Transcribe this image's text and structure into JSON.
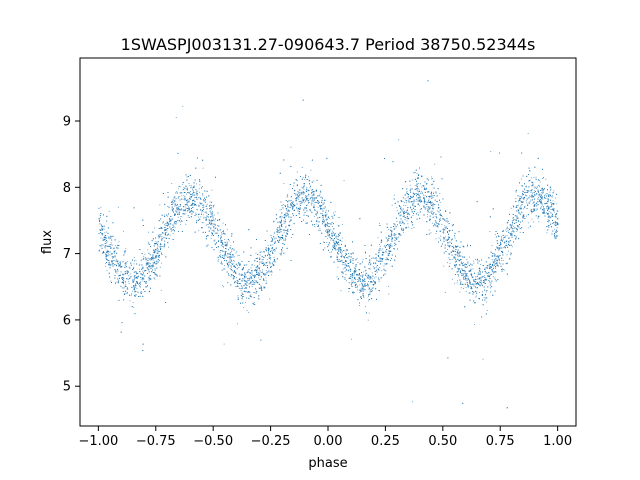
{
  "chart_data": {
    "type": "scatter",
    "title": "1SWASPJ003131.27-090643.7 Period 38750.52344s",
    "xlabel": "phase",
    "ylabel": "flux",
    "xlim": [
      -1.08,
      1.08
    ],
    "ylim": [
      4.4,
      9.95
    ],
    "x_ticks": [
      -1.0,
      -0.75,
      -0.5,
      -0.25,
      0.0,
      0.25,
      0.5,
      0.75,
      1.0
    ],
    "x_tick_labels": [
      "−1.00",
      "−0.75",
      "−0.50",
      "−0.25",
      "0.00",
      "0.25",
      "0.50",
      "0.75",
      "1.00"
    ],
    "y_ticks": [
      5,
      6,
      7,
      8,
      9
    ],
    "y_tick_labels": [
      "5",
      "6",
      "7",
      "8",
      "9"
    ],
    "grid": false,
    "point_color": "#1f77b4",
    "series": [
      {
        "phase_range": [
          -1.0,
          1.0
        ],
        "model": "double-period sinusoid, two maxima and two minima per unit phase",
        "maxima": [
          {
            "phase": -0.6,
            "flux": 7.9
          },
          {
            "phase": -0.1,
            "flux": 7.85
          },
          {
            "phase": 0.4,
            "flux": 7.85
          },
          {
            "phase": 0.9,
            "flux": 7.9
          }
        ],
        "minima": [
          {
            "phase": -0.85,
            "flux": 6.65
          },
          {
            "phase": -0.35,
            "flux": 6.55
          },
          {
            "phase": 0.15,
            "flux": 6.65
          },
          {
            "phase": 0.65,
            "flux": 6.55
          }
        ],
        "mean_flux": 7.22,
        "scatter_sigma": 0.18,
        "approx_points": 9000
      }
    ]
  }
}
